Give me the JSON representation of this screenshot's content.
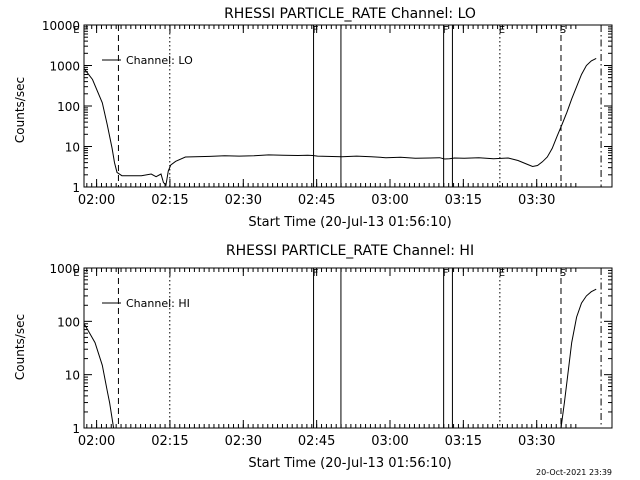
{
  "footer_timestamp": "20-Oct-2021 23:39",
  "chart_data": [
    {
      "type": "line",
      "title": "RHESSI PARTICLE_RATE Channel: LO",
      "xlabel": "Start Time (20-Jul-13 01:56:10)",
      "ylabel": "Counts/sec",
      "yscale": "log",
      "ylim": [
        1,
        10000
      ],
      "y_ticks": [
        "1",
        "10",
        "100",
        "1000",
        "10000"
      ],
      "x_ticks": [
        "02:00",
        "02:15",
        "02:30",
        "02:45",
        "03:00",
        "03:15",
        "03:30"
      ],
      "xlim_minutes_after_start": [
        0,
        99.0
      ],
      "legend": {
        "label": "Channel: LO",
        "placement": "top-left"
      },
      "markers": [
        {
          "label": "E",
          "minutes": 0.3,
          "style": "none"
        },
        {
          "label": "",
          "minutes": 9.3,
          "style": "dashed"
        },
        {
          "label": "",
          "minutes": 19.8,
          "style": "dotted"
        },
        {
          "label": "F",
          "minutes": 49.2,
          "style": "solid"
        },
        {
          "label": "",
          "minutes": 54.8,
          "style": "solid"
        },
        {
          "label": "F",
          "minutes": 75.8,
          "style": "solid"
        },
        {
          "label": "",
          "minutes": 77.6,
          "style": "solid"
        },
        {
          "label": "E",
          "minutes": 87.3,
          "style": "dotted"
        },
        {
          "label": "S",
          "minutes": 99.8,
          "style": "dashed"
        },
        {
          "label": "",
          "minutes": 108.0,
          "style": "dashdot"
        }
      ],
      "series": [
        {
          "name": "Channel: LO",
          "x": [
            0,
            2,
            4,
            6,
            7,
            8,
            8.5,
            9,
            10,
            12,
            14,
            16,
            17,
            18,
            18.5,
            19,
            19.5,
            20,
            21,
            23,
            25,
            28,
            31,
            34,
            37,
            40,
            43,
            46,
            48,
            49,
            50,
            52,
            55,
            58,
            61,
            64,
            67,
            70,
            73,
            75,
            76,
            77,
            78,
            80,
            83,
            86,
            89,
            91,
            93,
            94,
            95,
            96,
            97,
            98,
            99,
            100,
            101,
            102,
            103,
            104,
            105,
            106,
            107
          ],
          "y": [
            1000,
            850,
            450,
            120,
            35,
            9,
            4,
            2.3,
            1.9,
            1.9,
            1.9,
            2.1,
            1.8,
            2.1,
            1.3,
            1.1,
            2.5,
            3.5,
            4.3,
            5.5,
            5.6,
            5.7,
            5.9,
            5.8,
            5.9,
            6.2,
            6.1,
            6.0,
            6.1,
            6.0,
            5.8,
            5.7,
            5.6,
            5.8,
            5.6,
            5.3,
            5.4,
            5.1,
            5.2,
            5.3,
            4.9,
            5.0,
            5.2,
            5.1,
            5.3,
            5.0,
            5.2,
            4.5,
            3.6,
            3.2,
            3.4,
            4.2,
            5.5,
            9,
            18,
            35,
            70,
            150,
            300,
            600,
            1000,
            1300,
            1500
          ]
        }
      ]
    },
    {
      "type": "line",
      "title": "RHESSI PARTICLE_RATE Channel: HI",
      "xlabel": "Start Time (20-Jul-13 01:56:10)",
      "ylabel": "Counts/sec",
      "yscale": "log",
      "ylim": [
        1,
        1000
      ],
      "y_ticks": [
        "1",
        "10",
        "100",
        "1000"
      ],
      "x_ticks": [
        "02:00",
        "02:15",
        "02:30",
        "02:45",
        "03:00",
        "03:15",
        "03:30"
      ],
      "xlim_minutes_after_start": [
        0,
        99.0
      ],
      "legend": {
        "label": "Channel: HI",
        "placement": "top-left"
      },
      "markers": [
        {
          "label": "E",
          "minutes": 0.3,
          "style": "none"
        },
        {
          "label": "",
          "minutes": 9.3,
          "style": "dashed"
        },
        {
          "label": "",
          "minutes": 19.8,
          "style": "dotted"
        },
        {
          "label": "F",
          "minutes": 49.2,
          "style": "solid"
        },
        {
          "label": "",
          "minutes": 54.8,
          "style": "solid"
        },
        {
          "label": "F",
          "minutes": 75.8,
          "style": "solid"
        },
        {
          "label": "",
          "minutes": 77.6,
          "style": "solid"
        },
        {
          "label": "E",
          "minutes": 87.3,
          "style": "dotted"
        },
        {
          "label": "S",
          "minutes": 99.8,
          "style": "dashed"
        },
        {
          "label": "",
          "minutes": 108.0,
          "style": "dashdot"
        }
      ],
      "series": [
        {
          "name": "Channel: HI",
          "x": [
            0,
            1.5,
            3,
            4.5,
            6,
            7,
            7.5,
            8,
            8.3,
            99.8,
            100.5,
            101.2,
            102,
            103,
            104,
            105,
            106,
            107
          ],
          "y": [
            100,
            90,
            70,
            40,
            15,
            5,
            3,
            1.5,
            1,
            1,
            3,
            10,
            40,
            120,
            220,
            300,
            360,
            400
          ]
        }
      ]
    }
  ]
}
